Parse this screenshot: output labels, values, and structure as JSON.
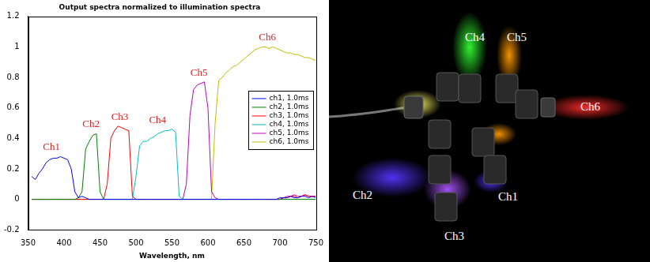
{
  "chart_data": {
    "type": "line",
    "title": "Output spectra normalized to illumination spectra",
    "x_label": "Wavelength, nm",
    "x": [
      355,
      360,
      365,
      370,
      375,
      380,
      385,
      390,
      395,
      400,
      405,
      410,
      415,
      420,
      425,
      430,
      435,
      440,
      445,
      450,
      455,
      460,
      465,
      470,
      475,
      480,
      485,
      490,
      495,
      500,
      505,
      510,
      515,
      520,
      525,
      530,
      535,
      540,
      545,
      550,
      555,
      560,
      565,
      570,
      575,
      580,
      585,
      590,
      595,
      600,
      605,
      610,
      615,
      620,
      625,
      630,
      635,
      640,
      645,
      650,
      655,
      660,
      665,
      670,
      675,
      680,
      685,
      690,
      695,
      700,
      705,
      710,
      715,
      720,
      725,
      730,
      735,
      740,
      745,
      750
    ],
    "xlim": [
      350,
      750
    ],
    "xticks": [
      350,
      400,
      450,
      500,
      550,
      600,
      650,
      700,
      750
    ],
    "ylim": [
      -0.2,
      1.2
    ],
    "yticks": [
      -0.2,
      0,
      0.2,
      0.4,
      0.6,
      0.8,
      1,
      1.2
    ],
    "grid": false,
    "legend": "upper right",
    "annotations": [
      "Ch1",
      "Ch2",
      "Ch3",
      "Ch4",
      "Ch5",
      "Ch6"
    ],
    "series": [
      {
        "name": "ch1, 1.0ms",
        "color": "#0000ff",
        "values": [
          0.15,
          0.13,
          0.17,
          0.2,
          0.24,
          0.26,
          0.27,
          0.27,
          0.28,
          0.27,
          0.26,
          0.2,
          0.05,
          0.01,
          0.02,
          0.01,
          0,
          0,
          0,
          0,
          0,
          0,
          0,
          0,
          0,
          0,
          0,
          0,
          0,
          0,
          0,
          0,
          0,
          0,
          0,
          0,
          0,
          0,
          0,
          0,
          0,
          0,
          0,
          0,
          0,
          0,
          0,
          0,
          0,
          0,
          0,
          0,
          0,
          0,
          0,
          0,
          0,
          0,
          0,
          0,
          0,
          0,
          0,
          0,
          0,
          0,
          0,
          0,
          0,
          0.01,
          0.01,
          0.01,
          0.02,
          0.01,
          0.01,
          0.02,
          0.02,
          0.01,
          0.02,
          0.01
        ]
      },
      {
        "name": "ch2, 1.0ms",
        "color": "#008000",
        "values": [
          0,
          0,
          0,
          0,
          0,
          0,
          0,
          0,
          0,
          0,
          0,
          0,
          0,
          0.01,
          0.05,
          0.33,
          0.38,
          0.42,
          0.43,
          0.05,
          0,
          0,
          0,
          0,
          0,
          0,
          0,
          0,
          0,
          0,
          0,
          0,
          0,
          0,
          0,
          0,
          0,
          0,
          0,
          0,
          0,
          0,
          0,
          0,
          0,
          0,
          0,
          0,
          0,
          0,
          0,
          0,
          0,
          0,
          0,
          0,
          0,
          0,
          0,
          0,
          0,
          0,
          0,
          0,
          0,
          0,
          0,
          0,
          0,
          0,
          0,
          0,
          0,
          0,
          0,
          0,
          0,
          0,
          0,
          0
        ]
      },
      {
        "name": "ch3, 1.0ms",
        "color": "#ff0000",
        "values": [
          0,
          0,
          0,
          0,
          0,
          0,
          0,
          0,
          0,
          0,
          0,
          0,
          0,
          0,
          0,
          0,
          0,
          0,
          0,
          0,
          0,
          0.1,
          0.4,
          0.45,
          0.48,
          0.47,
          0.46,
          0.45,
          0.02,
          0,
          0,
          0,
          0,
          0,
          0,
          0,
          0,
          0,
          0,
          0,
          0,
          0,
          0,
          0,
          0,
          0,
          0,
          0,
          0,
          0,
          0,
          0,
          0,
          0,
          0,
          0,
          0,
          0,
          0,
          0,
          0,
          0,
          0,
          0,
          0,
          0,
          0,
          0,
          0,
          0,
          0.01,
          0.01,
          0.02,
          0.02,
          0.01,
          0.02,
          0.03,
          0.02,
          0.02,
          0.02
        ]
      },
      {
        "name": "ch4, 1.0ms",
        "color": "#00bfbf",
        "values": [
          0,
          0,
          0,
          0,
          0,
          0,
          0,
          0,
          0,
          0,
          0,
          0,
          0,
          0,
          0,
          0,
          0,
          0,
          0,
          0,
          0,
          0,
          0,
          0,
          0,
          0,
          0,
          0,
          0,
          0.15,
          0.35,
          0.38,
          0.38,
          0.4,
          0.41,
          0.43,
          0.44,
          0.45,
          0.45,
          0.46,
          0.44,
          0.02,
          0,
          0,
          0,
          0,
          0,
          0,
          0,
          0,
          0,
          0,
          0,
          0,
          0,
          0,
          0,
          0,
          0,
          0,
          0,
          0,
          0,
          0,
          0,
          0,
          0,
          0,
          0,
          0,
          0,
          0,
          0,
          0,
          0,
          0,
          0,
          0,
          0,
          0
        ]
      },
      {
        "name": "ch5, 1.0ms",
        "color": "#bf00bf",
        "values": [
          0,
          0,
          0,
          0,
          0,
          0,
          0,
          0,
          0,
          0,
          0,
          0,
          0,
          0,
          0,
          0,
          0,
          0,
          0,
          0,
          0,
          0,
          0,
          0,
          0,
          0,
          0,
          0,
          0,
          0,
          0,
          0,
          0,
          0,
          0,
          0,
          0,
          0,
          0,
          0,
          0,
          0,
          0,
          0.1,
          0.55,
          0.72,
          0.75,
          0.76,
          0.77,
          0.6,
          0.05,
          0.01,
          0,
          0,
          0,
          0,
          0,
          0,
          0,
          0,
          0,
          0,
          0,
          0,
          0,
          0,
          0,
          0,
          0,
          0,
          0.01,
          0.02,
          0.02,
          0.03,
          0.02,
          0.02,
          0.03,
          0.02,
          0.02,
          0.02
        ]
      },
      {
        "name": "ch6, 1.0ms",
        "color": "#bfbf00",
        "values": [
          0,
          0,
          0,
          0,
          0,
          0,
          0,
          0,
          0,
          0,
          0,
          0,
          0,
          0,
          0,
          0,
          0,
          0,
          0,
          0,
          0,
          0,
          0,
          0,
          0,
          0,
          0,
          0,
          0,
          0,
          0,
          0,
          0,
          0,
          0,
          0,
          0,
          0,
          0,
          0,
          0,
          0,
          0,
          0,
          0,
          0,
          0,
          0,
          0,
          0,
          0,
          0.5,
          0.78,
          0.8,
          0.83,
          0.85,
          0.87,
          0.88,
          0.9,
          0.92,
          0.94,
          0.96,
          0.98,
          0.99,
          1.0,
          1.0,
          0.99,
          1.0,
          0.99,
          0.98,
          0.97,
          0.96,
          0.96,
          0.95,
          0.95,
          0.94,
          0.93,
          0.93,
          0.92,
          0.91
        ]
      }
    ]
  },
  "photo": {
    "labels": [
      "Ch4",
      "Ch5",
      "Ch6",
      "Ch2",
      "Ch1",
      "Ch3"
    ]
  }
}
